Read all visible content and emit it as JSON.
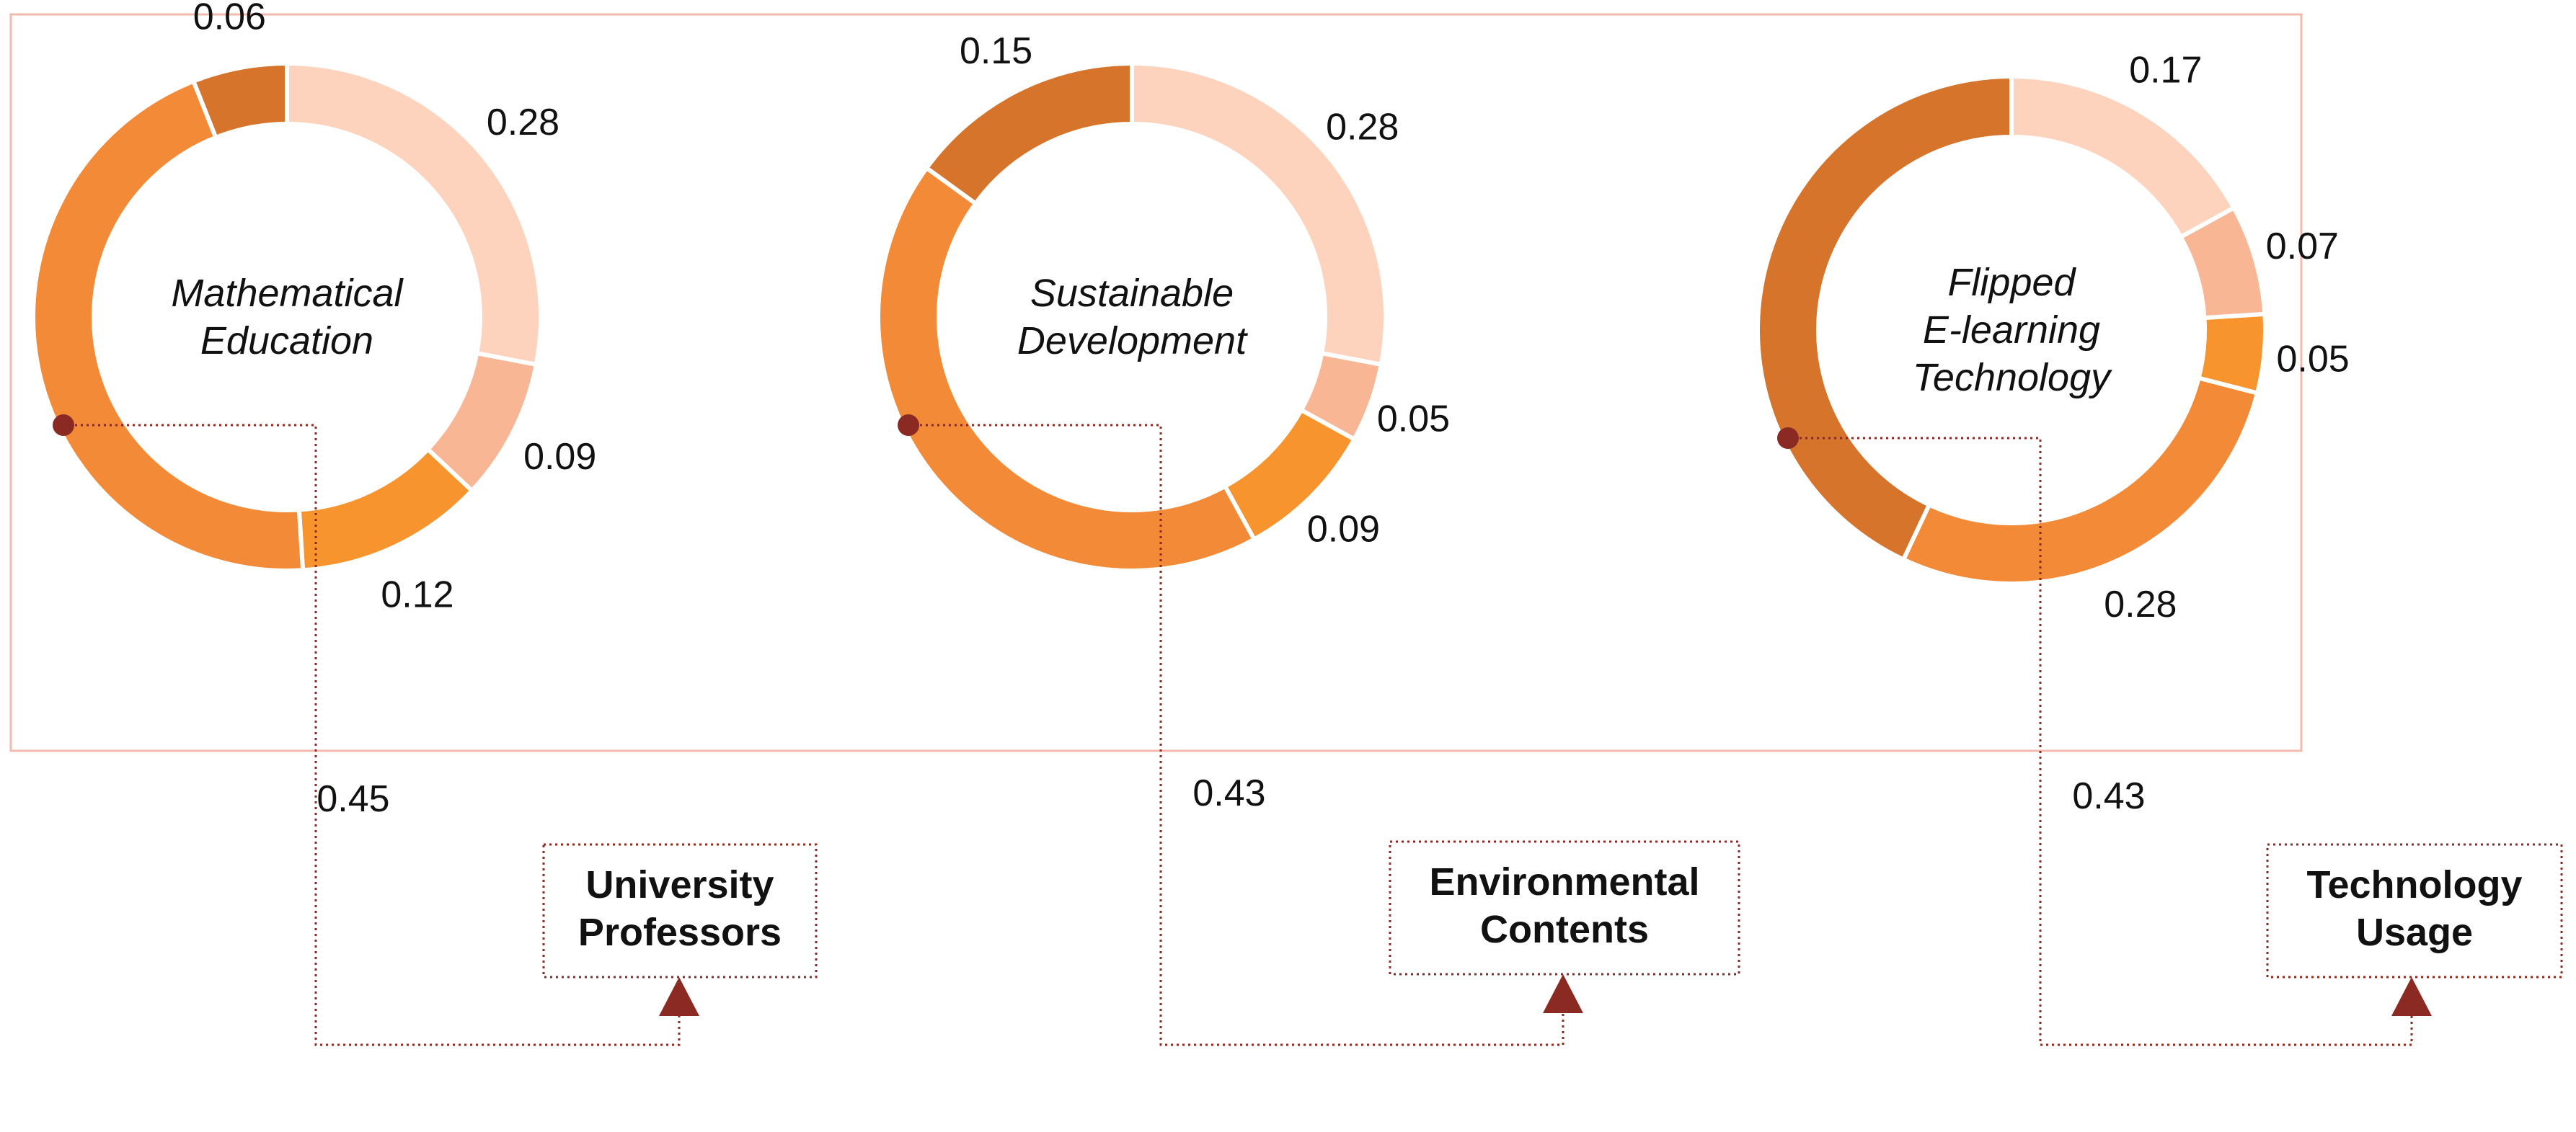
{
  "colors": {
    "frame": "#f2b9ad",
    "connector": "#8b2a22",
    "seg_light": "#fdd3bd",
    "seg_pale": "#f9b694",
    "seg_bright": "#f7942e",
    "seg_main": "#f28a37",
    "seg_dark": "#d6742c"
  },
  "chart_data": [
    {
      "type": "pie",
      "style": "donut",
      "center_label": [
        "Mathematical",
        "Education"
      ],
      "slices": [
        {
          "value": 0.28,
          "label": "0.28",
          "color": "#fdd3bd"
        },
        {
          "value": 0.09,
          "label": "0.09",
          "color": "#f9b694"
        },
        {
          "value": 0.12,
          "label": "0.12",
          "color": "#f7942e"
        },
        {
          "value": 0.45,
          "label": "0.45",
          "color": "#f28a37"
        },
        {
          "value": 0.06,
          "label": "0.06",
          "color": "#d6742c"
        }
      ],
      "highlight_slice": 3,
      "target_box": [
        "University",
        "Professors"
      ]
    },
    {
      "type": "pie",
      "style": "donut",
      "center_label": [
        "Sustainable",
        "Development"
      ],
      "slices": [
        {
          "value": 0.28,
          "label": "0.28",
          "color": "#fdd3bd"
        },
        {
          "value": 0.05,
          "label": "0.05",
          "color": "#f9b694"
        },
        {
          "value": 0.09,
          "label": "0.09",
          "color": "#f7942e"
        },
        {
          "value": 0.43,
          "label": "0.43",
          "color": "#f28a37"
        },
        {
          "value": 0.15,
          "label": "0.15",
          "color": "#d6742c"
        }
      ],
      "highlight_slice": 3,
      "target_box": [
        "Environmental",
        "Contents"
      ]
    },
    {
      "type": "pie",
      "style": "donut",
      "center_label": [
        "Flipped",
        "E-learning",
        "Technology"
      ],
      "slices": [
        {
          "value": 0.17,
          "label": "0.17",
          "color": "#fdd3bd"
        },
        {
          "value": 0.07,
          "label": "0.07",
          "color": "#f9b694"
        },
        {
          "value": 0.05,
          "label": "0.05",
          "color": "#f7942e"
        },
        {
          "value": 0.28,
          "label": "0.28",
          "color": "#f28a37"
        },
        {
          "value": 0.43,
          "label": "0.43",
          "color": "#d6742c"
        }
      ],
      "highlight_slice": 4,
      "target_box": [
        "Technology",
        "Usage"
      ]
    }
  ]
}
